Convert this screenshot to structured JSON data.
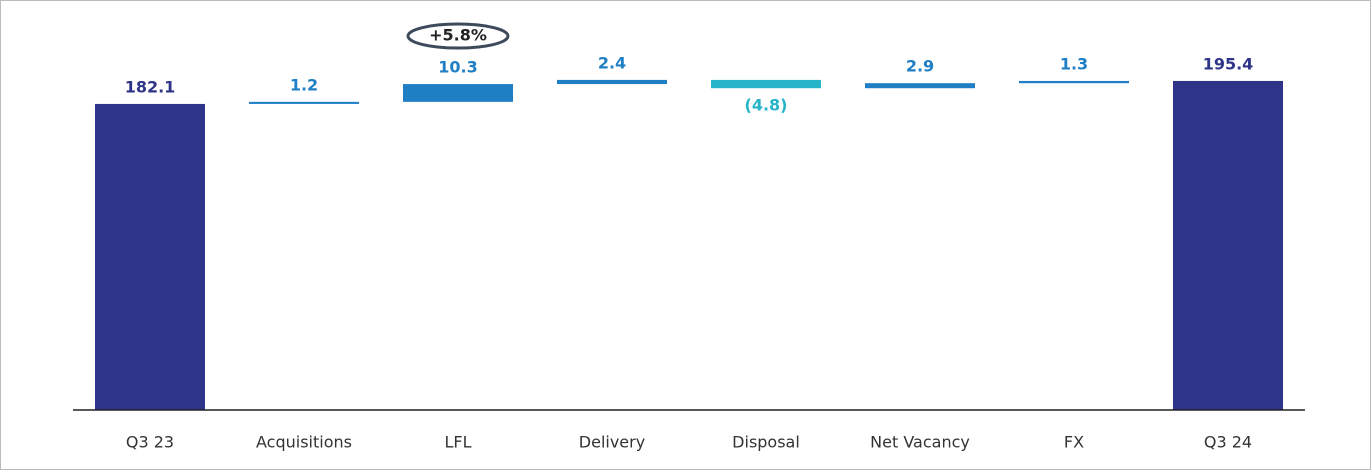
{
  "chart_data": {
    "type": "waterfall",
    "categories": [
      "Q3 23",
      "Acquisitions",
      "LFL",
      "Delivery",
      "Disposal",
      "Net Vacancy",
      "FX",
      "Q3 24"
    ],
    "values": [
      182.1,
      1.2,
      10.3,
      2.4,
      -4.8,
      2.9,
      1.3,
      195.4
    ],
    "value_labels": [
      "182.1",
      "1.2",
      "10.3",
      "2.4",
      "(4.8)",
      "2.9",
      "1.3",
      "195.4"
    ],
    "total": [
      true,
      false,
      false,
      false,
      false,
      false,
      false,
      true
    ],
    "colors": {
      "total": "#2e3488",
      "increase": "#1f7fc4",
      "decrease": "#26b5c8"
    },
    "annotations": [
      {
        "category": 2,
        "text": "+5.8%"
      }
    ],
    "ylim": [
      5,
      200
    ]
  }
}
